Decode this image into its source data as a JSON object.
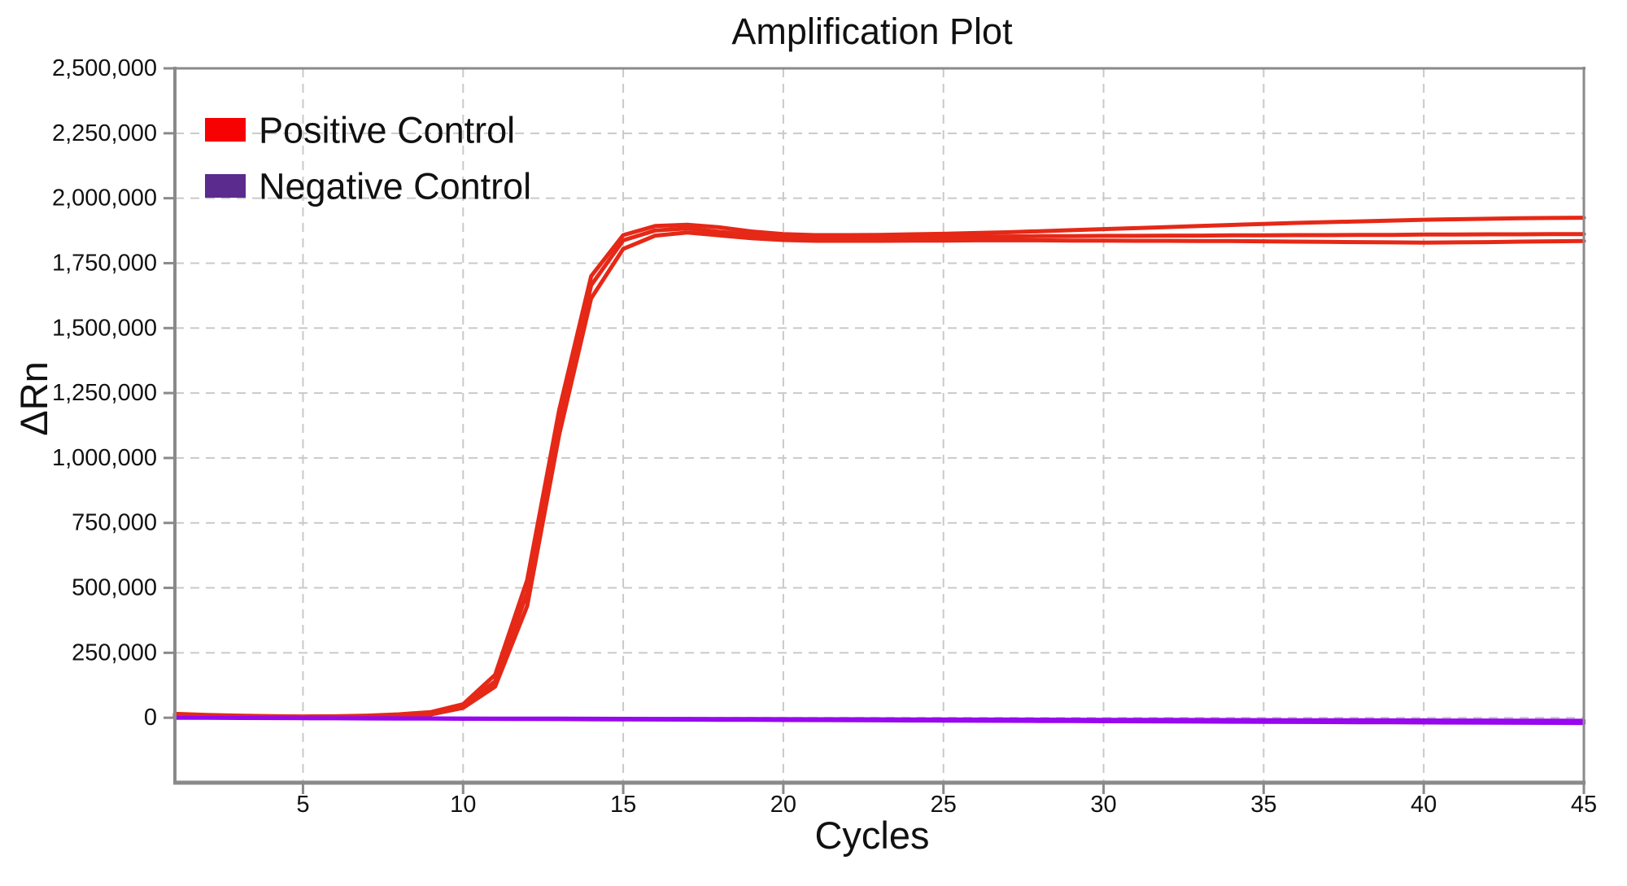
{
  "chart_data": {
    "type": "line",
    "title": "Amplification Plot",
    "xlabel": "Cycles",
    "ylabel": "ΔRn",
    "x_range": [
      1,
      45
    ],
    "y_range": [
      -250000,
      2500000
    ],
    "grid": "dashed, both axes",
    "legend_position": "upper left",
    "x_ticks": {
      "values": [
        5,
        10,
        15,
        20,
        25,
        30,
        35,
        40,
        45
      ],
      "labels": [
        "5",
        "10",
        "15",
        "20",
        "25",
        "30",
        "35",
        "40",
        "45"
      ]
    },
    "y_ticks": {
      "values": [
        0,
        250000,
        500000,
        750000,
        1000000,
        1250000,
        1500000,
        1750000,
        2000000,
        2250000,
        2500000
      ],
      "labels": [
        "0",
        "250,000",
        "500,000",
        "750,000",
        "1,000,000",
        "1,250,000",
        "1,500,000",
        "1,750,000",
        "2,000,000",
        "2,250,000",
        "2,500,000"
      ]
    },
    "legend": {
      "entries": [
        {
          "label": "Positive Control",
          "swatch_color": "#f70202"
        },
        {
          "label": "Negative Control",
          "swatch_color": "#5b2b8d"
        }
      ]
    },
    "colors": {
      "positive_line": "#e62817",
      "negative_line": "#9708ef",
      "grid": "#c9c9c9",
      "spine": "#8a8a8a",
      "text": "#111111",
      "background": "#ffffff"
    },
    "x": [
      1,
      2,
      3,
      4,
      5,
      6,
      7,
      8,
      9,
      10,
      11,
      12,
      13,
      14,
      15,
      16,
      17,
      18,
      19,
      20,
      21,
      22,
      23,
      24,
      25,
      26,
      27,
      28,
      29,
      30,
      31,
      32,
      33,
      34,
      35,
      36,
      37,
      38,
      39,
      40,
      41,
      42,
      43,
      44,
      45
    ],
    "series": [
      {
        "name": "Positive Control replicate 1",
        "group": "Positive Control",
        "color": "#e62817",
        "width": 5,
        "values": [
          15000,
          11000,
          8000,
          6000,
          5000,
          5500,
          8000,
          13000,
          22000,
          52000,
          165000,
          530000,
          1185000,
          1700000,
          1858000,
          1893000,
          1898000,
          1888000,
          1872000,
          1862000,
          1858000,
          1858000,
          1859000,
          1861000,
          1863000,
          1866000,
          1869000,
          1873000,
          1877000,
          1881000,
          1885000,
          1889000,
          1893000,
          1897000,
          1901000,
          1905000,
          1908000,
          1911000,
          1914000,
          1917000,
          1919000,
          1921000,
          1923000,
          1924000,
          1925000
        ]
      },
      {
        "name": "Positive Control replicate 2",
        "group": "Positive Control",
        "color": "#e62817",
        "width": 5,
        "values": [
          10000,
          7500,
          5500,
          4000,
          3500,
          4000,
          6000,
          10000,
          17000,
          45000,
          140000,
          480000,
          1140000,
          1665000,
          1838000,
          1876000,
          1884000,
          1871000,
          1858000,
          1850000,
          1848000,
          1848000,
          1849000,
          1850000,
          1851000,
          1852000,
          1853000,
          1854000,
          1854000,
          1855000,
          1855000,
          1856000,
          1856000,
          1857000,
          1857000,
          1858000,
          1858000,
          1859000,
          1859000,
          1860000,
          1860000,
          1861000,
          1861000,
          1862000,
          1862000
        ]
      },
      {
        "name": "Positive Control replicate 3",
        "group": "Positive Control",
        "color": "#e62817",
        "width": 5,
        "values": [
          6000,
          4500,
          3200,
          2500,
          2200,
          2600,
          4200,
          7500,
          13000,
          38000,
          120000,
          430000,
          1090000,
          1615000,
          1805000,
          1856000,
          1868000,
          1857000,
          1846000,
          1839000,
          1836000,
          1836000,
          1836000,
          1837000,
          1837000,
          1838000,
          1838000,
          1838000,
          1837000,
          1837000,
          1836000,
          1836000,
          1835000,
          1835000,
          1834000,
          1833000,
          1832000,
          1831000,
          1830000,
          1829000,
          1830000,
          1831000,
          1833000,
          1834000,
          1835000
        ]
      },
      {
        "name": "Negative Control replicate 1",
        "group": "Negative Control",
        "color": "#9708ef",
        "width": 4,
        "values": [
          1000,
          750,
          500,
          250,
          0,
          -250,
          -500,
          -750,
          -1000,
          -1250,
          -1500,
          -1750,
          -2000,
          -2250,
          -2500,
          -2750,
          -3000,
          -3250,
          -3500,
          -3750,
          -4000,
          -4250,
          -4500,
          -4750,
          -5000,
          -5250,
          -5500,
          -5750,
          -6000,
          -6250,
          -6500,
          -6750,
          -7000,
          -7250,
          -7500,
          -7750,
          -8000,
          -8250,
          -8500,
          -8750,
          -9000,
          -9250,
          -9500,
          -9750,
          -10000
        ]
      },
      {
        "name": "Negative Control replicate 2",
        "group": "Negative Control",
        "color": "#9708ef",
        "width": 4,
        "values": [
          0,
          -390,
          -780,
          -1170,
          -1560,
          -1950,
          -2340,
          -2730,
          -3120,
          -3510,
          -3900,
          -4290,
          -4680,
          -5070,
          -5460,
          -5850,
          -6240,
          -6630,
          -7020,
          -7410,
          -7800,
          -8190,
          -8580,
          -8970,
          -9360,
          -9750,
          -10140,
          -10530,
          -10920,
          -11310,
          -11700,
          -12090,
          -12480,
          -12870,
          -13260,
          -13650,
          -14040,
          -14430,
          -14820,
          -15210,
          -15600,
          -15990,
          -16380,
          -16770,
          -17160
        ]
      },
      {
        "name": "Negative Control replicate 3",
        "group": "Negative Control",
        "color": "#9708ef",
        "width": 4,
        "values": [
          -1500,
          -1965,
          -2430,
          -2895,
          -3360,
          -3825,
          -4290,
          -4755,
          -5220,
          -5685,
          -6150,
          -6615,
          -7080,
          -7545,
          -8010,
          -8475,
          -8940,
          -9405,
          -9870,
          -10335,
          -10800,
          -11265,
          -11730,
          -12195,
          -12660,
          -13125,
          -13590,
          -14055,
          -14520,
          -14985,
          -15450,
          -15915,
          -16380,
          -16845,
          -17310,
          -17775,
          -18240,
          -18705,
          -19170,
          -19635,
          -20100,
          -20565,
          -21030,
          -21495,
          -21960
        ]
      }
    ]
  }
}
